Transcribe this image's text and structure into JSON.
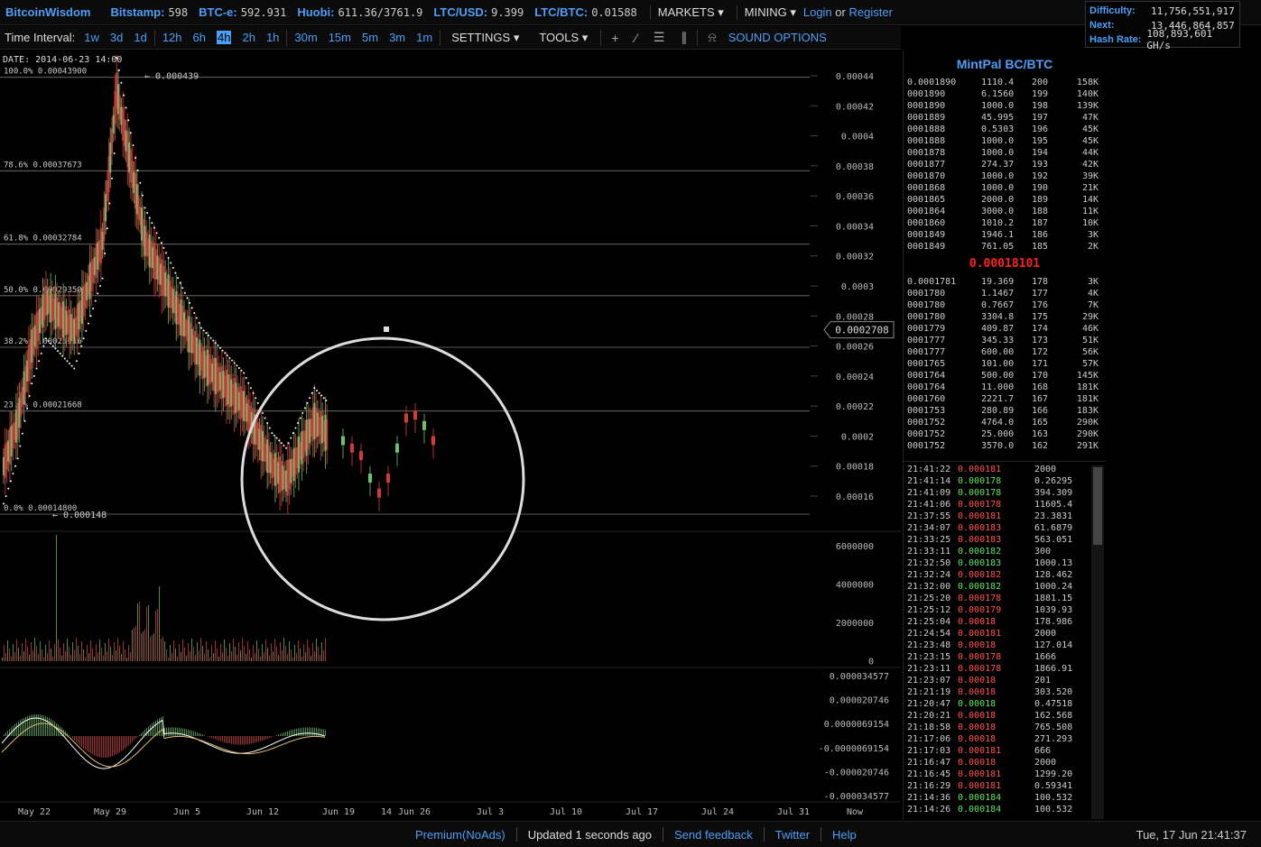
{
  "header": {
    "brand": "BitcoinWisdom",
    "tickers": [
      {
        "label": "Bitstamp:",
        "value": "598"
      },
      {
        "label": "BTC-e:",
        "value": "592.931"
      },
      {
        "label": "Huobi:",
        "value": "611.36/3761.9"
      },
      {
        "label": "LTC/USD:",
        "value": "9.399"
      },
      {
        "label": "LTC/BTC:",
        "value": "0.01588"
      }
    ],
    "markets": "MARKETS",
    "mining": "MINING",
    "login": "Login",
    "or": "or",
    "register": "Register"
  },
  "network": {
    "difficulty_label": "Difficulty:",
    "difficulty": "11,756,551,917",
    "next_label": "Next:",
    "next": "13,446,864,857",
    "hashrate_label": "Hash Rate:",
    "hashrate": "108,893,601 GH/s"
  },
  "toolbar": {
    "time_interval_label": "Time Interval:",
    "intervals": [
      "1w",
      "3d",
      "1d",
      "12h",
      "6h",
      "4h",
      "2h",
      "1h",
      "30m",
      "15m",
      "5m",
      "3m",
      "1m"
    ],
    "selected_interval": "4h",
    "settings": "SETTINGS",
    "tools": "TOOLS",
    "sound": "SOUND OPTIONS"
  },
  "chart": {
    "date_label": "DATE: 2014-06-23 14:00",
    "price_marker": "0.0002708",
    "fib": [
      {
        "label": "100.0% 0.00043900",
        "v": 0.000439
      },
      {
        "label": "78.6% 0.00037673",
        "v": 0.00037673
      },
      {
        "label": "61.8% 0.00032784",
        "v": 0.00032784
      },
      {
        "label": "50.0% 0.00029350",
        "v": 0.0002935
      },
      {
        "label": "38.2% 0.00025916",
        "v": 0.00025916
      },
      {
        "label": "23.6% 0.00021668",
        "v": 0.00021668
      },
      {
        "label": "0.0% 0.00014800",
        "v": 0.000148
      }
    ],
    "high_label": "0.000439",
    "low_label": "0.000148",
    "price_ticks": [
      "0.00044",
      "0.00042",
      "0.0004",
      "0.00038",
      "0.00036",
      "0.00034",
      "0.00032",
      "0.0003",
      "0.00028",
      "0.00026",
      "0.00024",
      "0.00022",
      "0.0002",
      "0.00018",
      "0.00016"
    ],
    "volume_ticks": [
      "6000000",
      "4000000",
      "2000000",
      "0"
    ],
    "macd_ticks": [
      "0.000034577",
      "0.000020746",
      "0.0000069154",
      "-0.0000069154",
      "-0.000020746",
      "-0.000034577"
    ],
    "x_ticks": [
      "May 22",
      "May 29",
      "Jun 5",
      "Jun 12",
      "Jun 19",
      "14",
      "Jun 26",
      "Jul 3",
      "Jul 10",
      "Jul 17",
      "Jul 24",
      "Jul 31",
      "Now"
    ]
  },
  "chart_data": {
    "type": "line",
    "title": "",
    "xlabel": "",
    "ylabel": "",
    "ylim": [
      0.00015,
      0.00045
    ],
    "series": [
      {
        "values": [
          0.00018,
          0.00021,
          0.00026,
          0.00029,
          0.00028,
          0.00027,
          0.0003,
          0.00033,
          0.00043,
          0.00038,
          0.00033,
          0.00031,
          0.00029,
          0.00027,
          0.00025,
          0.00024,
          0.00023,
          0.00022,
          0.0002,
          0.00018,
          0.00017,
          0.00019,
          0.00021,
          0.0002
        ]
      }
    ]
  },
  "orderbook": {
    "title": "MintPal BC/BTC",
    "asks": [
      [
        "0.0001890",
        "1110.4",
        "200",
        "158K"
      ],
      [
        "0001890",
        "6.1560",
        "199",
        "140K"
      ],
      [
        "0001890",
        "1000.0",
        "198",
        "139K"
      ],
      [
        "0001889",
        "45.995",
        "197",
        "47K"
      ],
      [
        "0001888",
        "0.5303",
        "196",
        "45K"
      ],
      [
        "0001888",
        "1000.0",
        "195",
        "45K"
      ],
      [
        "0001878",
        "1000.0",
        "194",
        "44K"
      ],
      [
        "0001877",
        "274.37",
        "193",
        "42K"
      ],
      [
        "0001870",
        "1000.0",
        "192",
        "39K"
      ],
      [
        "0001868",
        "1000.0",
        "190",
        "21K"
      ],
      [
        "0001865",
        "2000.0",
        "189",
        "14K"
      ],
      [
        "0001864",
        "3000.0",
        "188",
        "11K"
      ],
      [
        "0001860",
        "1010.2",
        "187",
        "10K"
      ],
      [
        "0001849",
        "1946.1",
        "186",
        "3K"
      ],
      [
        "0001849",
        "761.05",
        "185",
        "2K"
      ]
    ],
    "last": "0.00018101",
    "bids": [
      [
        "0.0001781",
        "19.369",
        "178",
        "3K"
      ],
      [
        "0001780",
        "1.1467",
        "177",
        "4K"
      ],
      [
        "0001780",
        "0.7667",
        "176",
        "7K"
      ],
      [
        "0001780",
        "3304.8",
        "175",
        "29K"
      ],
      [
        "0001779",
        "409.87",
        "174",
        "46K"
      ],
      [
        "0001777",
        "345.33",
        "173",
        "51K"
      ],
      [
        "0001777",
        "600.00",
        "172",
        "56K"
      ],
      [
        "0001765",
        "101.00",
        "171",
        "57K"
      ],
      [
        "0001764",
        "500.00",
        "170",
        "145K"
      ],
      [
        "0001764",
        "11.000",
        "168",
        "181K"
      ],
      [
        "0001760",
        "2221.7",
        "167",
        "181K"
      ],
      [
        "0001753",
        "280.89",
        "166",
        "183K"
      ],
      [
        "0001752",
        "4764.0",
        "165",
        "290K"
      ],
      [
        "0001752",
        "25.000",
        "163",
        "290K"
      ],
      [
        "0001752",
        "3570.0",
        "162",
        "291K"
      ]
    ]
  },
  "trades": [
    [
      "21:41:22",
      "0.000181",
      "2000",
      "dn"
    ],
    [
      "21:41:14",
      "0.000178",
      "0.26295",
      "up"
    ],
    [
      "21:41:09",
      "0.000178",
      "394.309",
      "up"
    ],
    [
      "21:41:06",
      "0.000178",
      "11605.4",
      "dn"
    ],
    [
      "21:37:55",
      "0.000181",
      "23.3831",
      "dn"
    ],
    [
      "21:34:07",
      "0.000183",
      "61.6879",
      "dn"
    ],
    [
      "21:33:25",
      "0.000183",
      "563.051",
      "dn"
    ],
    [
      "21:33:11",
      "0.000182",
      "300",
      "up"
    ],
    [
      "21:32:50",
      "0.000183",
      "1000.13",
      "up"
    ],
    [
      "21:32:24",
      "0.000182",
      "128.462",
      "dn"
    ],
    [
      "21:32:00",
      "0.000182",
      "1000.24",
      "up"
    ],
    [
      "21:25:20",
      "0.000178",
      "1881.15",
      "dn"
    ],
    [
      "21:25:12",
      "0.000179",
      "1039.93",
      "dn"
    ],
    [
      "21:25:04",
      "0.00018",
      "178.986",
      "dn"
    ],
    [
      "21:24:54",
      "0.000181",
      "2000",
      "dn"
    ],
    [
      "21:23:48",
      "0.00018",
      "127.014",
      "dn"
    ],
    [
      "21:23:15",
      "0.000178",
      "1666",
      "dn"
    ],
    [
      "21:23:11",
      "0.000178",
      "1866.91",
      "dn"
    ],
    [
      "21:23:07",
      "0.00018",
      "201",
      "dn"
    ],
    [
      "21:21:19",
      "0.00018",
      "303.520",
      "dn"
    ],
    [
      "21:20:47",
      "0.00018",
      "0.47518",
      "up"
    ],
    [
      "21:20:21",
      "0.00018",
      "162.568",
      "dn"
    ],
    [
      "21:18:58",
      "0.00018",
      "765.508",
      "dn"
    ],
    [
      "21:17:06",
      "0.00018",
      "271.293",
      "dn"
    ],
    [
      "21:17:03",
      "0.000181",
      "666",
      "dn"
    ],
    [
      "21:16:47",
      "0.00018",
      "2000",
      "dn"
    ],
    [
      "21:16:45",
      "0.000181",
      "1299.20",
      "dn"
    ],
    [
      "21:16:29",
      "0.000181",
      "0.59341",
      "dn"
    ],
    [
      "21:14:36",
      "0.000184",
      "100.532",
      "up"
    ],
    [
      "21:14:26",
      "0.000184",
      "100.532",
      "up"
    ]
  ],
  "footer": {
    "premium": "Premium(NoAds)",
    "updated": "Updated 1 seconds ago",
    "feedback": "Send feedback",
    "twitter": "Twitter",
    "help": "Help",
    "clock": "Tue, 17 Jun 21:41:37"
  },
  "colors": {
    "accent": "#4d9ef6",
    "up": "#5ee35e",
    "down": "#ff5050"
  }
}
